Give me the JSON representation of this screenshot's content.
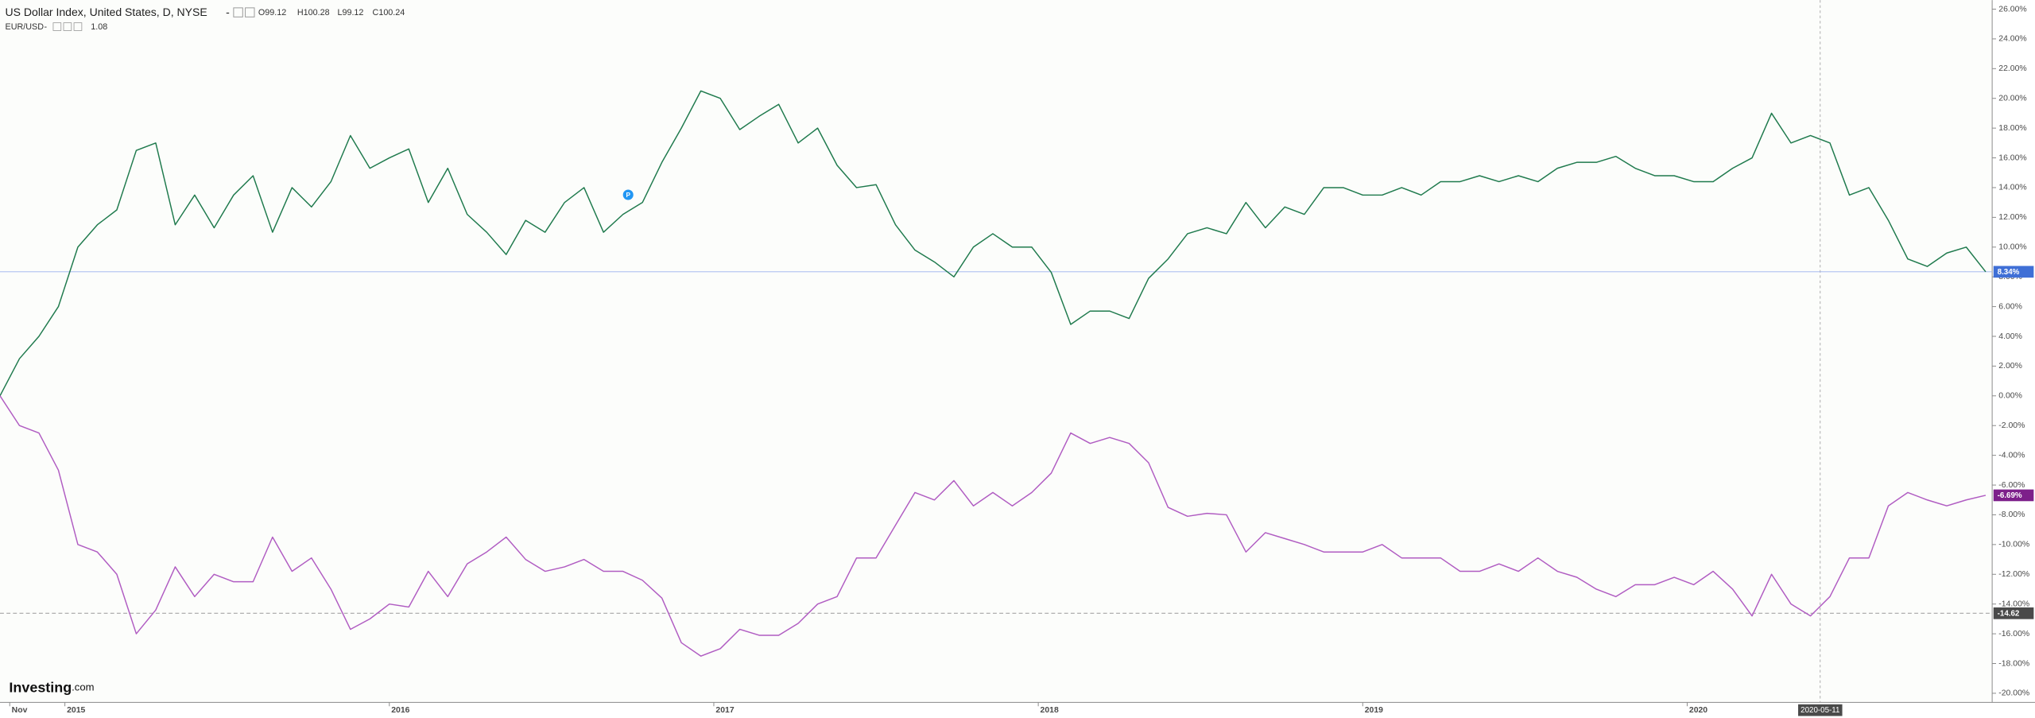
{
  "chart_data": {
    "type": "line",
    "title": "US Dollar Index, United States, D, NYSE",
    "ohlc": [
      "O99.12",
      "H100.28",
      "L99.12",
      "C100.24"
    ],
    "x": [
      2014.8,
      2014.86,
      2014.92,
      2014.98,
      2015.04,
      2015.1,
      2015.16,
      2015.22,
      2015.28,
      2015.34,
      2015.4,
      2015.46,
      2015.52,
      2015.58,
      2015.64,
      2015.7,
      2015.76,
      2015.82,
      2015.88,
      2015.94,
      2016,
      2016.06,
      2016.12,
      2016.18,
      2016.24,
      2016.3,
      2016.36,
      2016.42,
      2016.48,
      2016.54,
      2016.6,
      2016.66,
      2016.72,
      2016.78,
      2016.84,
      2016.9,
      2016.96,
      2017.02,
      2017.08,
      2017.14,
      2017.2,
      2017.26,
      2017.32,
      2017.38,
      2017.44,
      2017.5,
      2017.56,
      2017.62,
      2017.68,
      2017.74,
      2017.8,
      2017.86,
      2017.92,
      2017.98,
      2018.04,
      2018.1,
      2018.16,
      2018.22,
      2018.28,
      2018.34,
      2018.4,
      2018.46,
      2018.52,
      2018.58,
      2018.64,
      2018.7,
      2018.76,
      2018.82,
      2018.88,
      2018.94,
      2019,
      2019.06,
      2019.12,
      2019.18,
      2019.24,
      2019.3,
      2019.36,
      2019.42,
      2019.48,
      2019.54,
      2019.6,
      2019.66,
      2019.72,
      2019.78,
      2019.84,
      2019.9,
      2019.96,
      2020.02,
      2020.08,
      2020.14,
      2020.2,
      2020.26,
      2020.32,
      2020.38,
      2020.44,
      2020.5,
      2020.56,
      2020.62,
      2020.68,
      2020.74,
      2020.8,
      2020.86,
      2020.92
    ],
    "series": [
      {
        "name": "US Dollar Index, United States, D, NYSE",
        "color": "#1f7a4d",
        "values": [
          0,
          2.5,
          4,
          6,
          10,
          11.5,
          12.5,
          16.5,
          17,
          11.5,
          13.5,
          11.3,
          13.5,
          14.8,
          11,
          14,
          12.7,
          14.4,
          17.5,
          15.3,
          16,
          16.6,
          13,
          15.3,
          12.2,
          11,
          9.5,
          11.8,
          11,
          13,
          14,
          11,
          12.2,
          13,
          15.7,
          18,
          20.5,
          20,
          17.9,
          18.8,
          19.6,
          17,
          18,
          15.5,
          14,
          14.2,
          11.5,
          9.8,
          9,
          8,
          10,
          10.9,
          10,
          10,
          8.3,
          4.8,
          5.7,
          5.7,
          5.2,
          7.9,
          9.2,
          10.9,
          11.3,
          10.9,
          13,
          11.3,
          12.7,
          12.2,
          14,
          14,
          13.5,
          13.5,
          14,
          13.5,
          14.4,
          14.4,
          14.8,
          14.4,
          14.8,
          14.4,
          15.3,
          15.7,
          15.7,
          16.1,
          15.3,
          14.8,
          14.8,
          14.4,
          14.4,
          15.3,
          16,
          19,
          17,
          17.5,
          17,
          13.5,
          14,
          11.8,
          9.2,
          8.7,
          9.6,
          10,
          8.34
        ]
      },
      {
        "name": "EUR/USD",
        "color": "#b05cc2",
        "last": "1.08",
        "values": [
          0,
          -2,
          -2.5,
          -5,
          -10,
          -10.5,
          -12,
          -16,
          -14.4,
          -11.5,
          -13.5,
          -12,
          -12.5,
          -12.5,
          -9.5,
          -11.8,
          -10.9,
          -13,
          -15.7,
          -15,
          -14,
          -14.2,
          -11.8,
          -13.5,
          -11.3,
          -10.5,
          -9.5,
          -11,
          -11.8,
          -11.5,
          -11,
          -11.8,
          -11.8,
          -12.4,
          -13.6,
          -16.6,
          -17.5,
          -17,
          -15.7,
          -16.1,
          -16.1,
          -15.3,
          -14,
          -13.5,
          -10.9,
          -10.9,
          -8.7,
          -6.5,
          -7,
          -5.7,
          -7.4,
          -6.5,
          -7.4,
          -6.5,
          -5.2,
          -2.5,
          -3.2,
          -2.8,
          -3.2,
          -4.5,
          -7.5,
          -8.1,
          -7.9,
          -8,
          -10.5,
          -9.2,
          -9.6,
          -10,
          -10.5,
          -10.5,
          -10.5,
          -10,
          -10.9,
          -10.9,
          -10.9,
          -11.8,
          -11.8,
          -11.3,
          -11.8,
          -10.9,
          -11.8,
          -12.2,
          -13,
          -13.5,
          -12.7,
          -12.7,
          -12.2,
          -12.7,
          -11.8,
          -13,
          -14.8,
          -12,
          -14,
          -14.8,
          -13.5,
          -10.9,
          -10.9,
          -7.4,
          -6.5,
          -7,
          -7.4,
          -7,
          -6.69
        ]
      }
    ],
    "xlim": [
      2014.8,
      2020.94
    ],
    "xticks": [
      {
        "value": 2014.83,
        "label": "Nov"
      },
      2015,
      2016,
      2017,
      2018,
      2019,
      2020
    ],
    "ylim": [
      -20,
      26
    ],
    "yticks": [
      {
        "value": 26,
        "label": "26.00%"
      },
      {
        "value": 24,
        "label": "24.00%"
      },
      {
        "value": 22,
        "label": "22.00%"
      },
      {
        "value": 20,
        "label": "20.00%"
      },
      {
        "value": 18,
        "label": "18.00%"
      },
      {
        "value": 16,
        "label": "16.00%"
      },
      {
        "value": 14,
        "label": "14.00%"
      },
      {
        "value": 12,
        "label": "12.00%"
      },
      {
        "value": 10,
        "label": "10.00%"
      },
      {
        "value": 8,
        "label": "8.00%"
      },
      {
        "value": 6,
        "label": "6.00%"
      },
      {
        "value": 4,
        "label": "4.00%"
      },
      {
        "value": 2,
        "label": "2.00%"
      },
      {
        "value": 0,
        "label": "0.00%"
      },
      {
        "value": -2,
        "label": "-2.00%"
      },
      {
        "value": -4,
        "label": "-4.00%"
      },
      {
        "value": -6,
        "label": "-6.00%"
      },
      {
        "value": -8,
        "label": "-8.00%"
      },
      {
        "value": -10,
        "label": "-10.00%"
      },
      {
        "value": -12,
        "label": "-12.00%"
      },
      {
        "value": -14,
        "label": "-14.00%"
      },
      {
        "value": -16,
        "label": "-16.00%"
      },
      {
        "value": -18,
        "label": "-18.00%"
      },
      {
        "value": -20,
        "label": "-20.00%"
      }
    ],
    "price_labels": [
      {
        "value": 8.34,
        "label": "8.34%",
        "color": "#3f6fd6",
        "line_color": "#9db2ee",
        "line_style": "solid"
      },
      {
        "value": -6.69,
        "label": "-6.69%",
        "color": "#7d1f8a"
      },
      {
        "value": -14.62,
        "label": "-14.62",
        "color": "#4a4a4a",
        "line_color": "#9a9a9a",
        "line_style": "dashed"
      }
    ],
    "crosshair": {
      "x": 2020.41,
      "label": "2020-05-11"
    },
    "event_marker": "P",
    "watermark": "Investing",
    "watermark_suffix": ".com"
  }
}
